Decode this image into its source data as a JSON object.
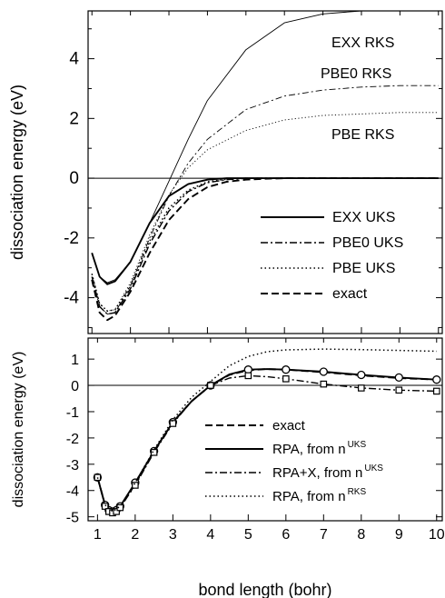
{
  "chart_data": [
    {
      "type": "line",
      "xlabel": "",
      "ylabel": "dissociation energy  (eV)",
      "xlim": [
        0.9,
        10.1
      ],
      "ylim": [
        -5.2,
        5.6
      ],
      "x_ticks": [
        1,
        2,
        3,
        4,
        5,
        6,
        7,
        8,
        9,
        10
      ],
      "y_ticks": [
        4,
        2,
        0,
        -2,
        -4
      ],
      "y_tick_labels": [
        "4",
        "2",
        "0",
        "-2",
        "-4"
      ],
      "zero_line": true,
      "grid": false,
      "legend_position": "lower-right",
      "series": [
        {
          "name": "EXX RKS",
          "style": "thin-solid",
          "x": [
            1,
            1.2,
            1.4,
            1.6,
            2,
            2.5,
            3,
            3.5,
            4,
            5,
            6,
            7,
            8,
            9,
            10
          ],
          "y": [
            -2.5,
            -3.3,
            -3.5,
            -3.4,
            -2.8,
            -1.5,
            -0.1,
            1.3,
            2.6,
            4.3,
            5.2,
            5.5,
            5.6,
            5.6,
            5.6
          ]
        },
        {
          "name": "PBE0 RKS",
          "style": "thin-dashdot",
          "x": [
            1,
            1.2,
            1.4,
            1.6,
            2,
            2.5,
            3,
            3.5,
            4,
            5,
            6,
            7,
            8,
            9,
            10
          ],
          "y": [
            -3.3,
            -4.3,
            -4.55,
            -4.5,
            -3.6,
            -2.0,
            -0.6,
            0.5,
            1.3,
            2.3,
            2.75,
            2.95,
            3.05,
            3.1,
            3.1
          ]
        },
        {
          "name": "PBE RKS",
          "style": "thin-dotted",
          "x": [
            1,
            1.2,
            1.4,
            1.6,
            2,
            2.5,
            3,
            3.5,
            4,
            5,
            6,
            7,
            8,
            9,
            10
          ],
          "y": [
            -3.2,
            -4.2,
            -4.45,
            -4.4,
            -3.5,
            -1.9,
            -0.55,
            0.35,
            0.95,
            1.6,
            1.95,
            2.1,
            2.15,
            2.2,
            2.2
          ]
        },
        {
          "name": "EXX UKS",
          "style": "solid",
          "x": [
            1,
            1.2,
            1.4,
            1.6,
            2,
            2.5,
            3,
            3.5,
            4,
            4.5,
            5,
            6,
            7,
            8,
            9,
            10
          ],
          "y": [
            -2.5,
            -3.3,
            -3.55,
            -3.45,
            -2.8,
            -1.5,
            -0.6,
            -0.2,
            -0.05,
            0,
            0,
            0,
            0,
            0,
            0,
            0
          ]
        },
        {
          "name": "PBE0 UKS",
          "style": "dashdot",
          "x": [
            1,
            1.2,
            1.4,
            1.6,
            2,
            2.5,
            3,
            3.5,
            4,
            4.5,
            5,
            6,
            7,
            8,
            9,
            10
          ],
          "y": [
            -3.3,
            -4.3,
            -4.55,
            -4.5,
            -3.7,
            -2.2,
            -1.1,
            -0.45,
            -0.15,
            -0.05,
            0,
            0,
            0,
            0,
            0,
            0
          ]
        },
        {
          "name": "PBE UKS",
          "style": "dotted",
          "x": [
            1,
            1.2,
            1.4,
            1.6,
            2,
            2.5,
            3,
            3.5,
            4,
            4.5,
            5,
            6,
            7,
            8,
            9,
            10
          ],
          "y": [
            -3.2,
            -4.2,
            -4.45,
            -4.4,
            -3.6,
            -2.1,
            -1.0,
            -0.4,
            -0.12,
            -0.03,
            0,
            0,
            0,
            0,
            0,
            0
          ]
        },
        {
          "name": "exact",
          "style": "dashed",
          "x": [
            1,
            1.2,
            1.4,
            1.6,
            2,
            2.5,
            3,
            3.5,
            4,
            4.5,
            5,
            5.5,
            6,
            7,
            8,
            9,
            10
          ],
          "y": [
            -3.4,
            -4.5,
            -4.75,
            -4.6,
            -3.8,
            -2.5,
            -1.4,
            -0.7,
            -0.3,
            -0.12,
            -0.05,
            -0.02,
            0,
            0,
            0,
            0,
            0
          ]
        }
      ]
    },
    {
      "type": "line",
      "xlabel": "bond length  (bohr)",
      "ylabel": "dissociation energy  (eV)",
      "xlim": [
        0.75,
        10.15
      ],
      "ylim": [
        -5.15,
        1.8
      ],
      "x_ticks": [
        1,
        2,
        3,
        4,
        5,
        6,
        7,
        8,
        9,
        10
      ],
      "x_tick_labels": [
        "1",
        "2",
        "3",
        "4",
        "5",
        "6",
        "7",
        "8",
        "9",
        "10"
      ],
      "y_ticks": [
        1,
        0,
        -1,
        -2,
        -3,
        -4,
        -5
      ],
      "y_tick_labels": [
        "1",
        "0",
        "-1",
        "-2",
        "-3",
        "-4",
        "-5"
      ],
      "zero_line": true,
      "grid": false,
      "legend_position": "lower-right",
      "series": [
        {
          "name": "exact",
          "style": "dashed",
          "x": [
            1,
            1.2,
            1.4,
            1.6,
            2,
            2.5,
            3,
            3.5,
            4,
            4.5,
            5,
            5.5,
            6,
            7,
            8,
            9,
            10
          ],
          "y": [
            -3.5,
            -4.55,
            -4.8,
            -4.65,
            -3.75,
            -2.5,
            -1.4,
            -0.6,
            0,
            0.4,
            0.58,
            0.62,
            0.6,
            0.5,
            0.38,
            0.28,
            0.22
          ]
        },
        {
          "name": "RPA, from n",
          "superscript": "UKS",
          "style": "solid",
          "x": [
            1,
            1.2,
            1.3,
            1.4,
            1.5,
            1.6,
            2,
            2.5,
            3,
            3.5,
            4,
            4.5,
            5,
            5.5,
            6,
            7,
            8,
            9,
            10
          ],
          "y": [
            -3.5,
            -4.55,
            -4.75,
            -4.8,
            -4.75,
            -4.6,
            -3.7,
            -2.5,
            -1.4,
            -0.6,
            0,
            0.42,
            0.6,
            0.62,
            0.6,
            0.52,
            0.4,
            0.3,
            0.22
          ],
          "markers": "circle",
          "marker_x": [
            1,
            1.2,
            1.3,
            1.4,
            1.5,
            1.6,
            2,
            2.5,
            3,
            4,
            5,
            6,
            7,
            8,
            9,
            10
          ],
          "marker_y": [
            -3.5,
            -4.55,
            -4.75,
            -4.8,
            -4.75,
            -4.6,
            -3.7,
            -2.5,
            -1.4,
            0,
            0.6,
            0.6,
            0.52,
            0.4,
            0.3,
            0.22
          ]
        },
        {
          "name": "RPA+X, from n",
          "superscript": "UKS",
          "style": "dashdot",
          "x": [
            1,
            1.2,
            1.3,
            1.4,
            1.5,
            1.6,
            2,
            2.5,
            3,
            3.5,
            4,
            4.5,
            5,
            5.5,
            6,
            7,
            8,
            9,
            10
          ],
          "y": [
            -3.5,
            -4.6,
            -4.8,
            -4.85,
            -4.8,
            -4.65,
            -3.8,
            -2.55,
            -1.45,
            -0.6,
            0,
            0.28,
            0.37,
            0.33,
            0.25,
            0.05,
            -0.1,
            -0.18,
            -0.22
          ],
          "markers": "square",
          "marker_x": [
            1,
            1.2,
            1.3,
            1.4,
            1.5,
            1.6,
            2,
            2.5,
            3,
            4,
            5,
            6,
            7,
            8,
            9,
            10
          ],
          "marker_y": [
            -3.5,
            -4.6,
            -4.8,
            -4.85,
            -4.8,
            -4.65,
            -3.8,
            -2.55,
            -1.45,
            0,
            0.37,
            0.25,
            0.05,
            -0.1,
            -0.18,
            -0.22
          ]
        },
        {
          "name": "RPA, from n",
          "superscript": "RKS",
          "style": "dotted",
          "x": [
            1,
            1.2,
            1.4,
            1.6,
            2,
            2.5,
            3,
            3.5,
            4,
            4.5,
            5,
            5.5,
            6,
            7,
            8,
            9,
            10
          ],
          "y": [
            -3.5,
            -4.55,
            -4.8,
            -4.6,
            -3.7,
            -2.45,
            -1.3,
            -0.45,
            0.15,
            0.75,
            1.1,
            1.28,
            1.35,
            1.38,
            1.36,
            1.33,
            1.3
          ]
        }
      ]
    }
  ]
}
